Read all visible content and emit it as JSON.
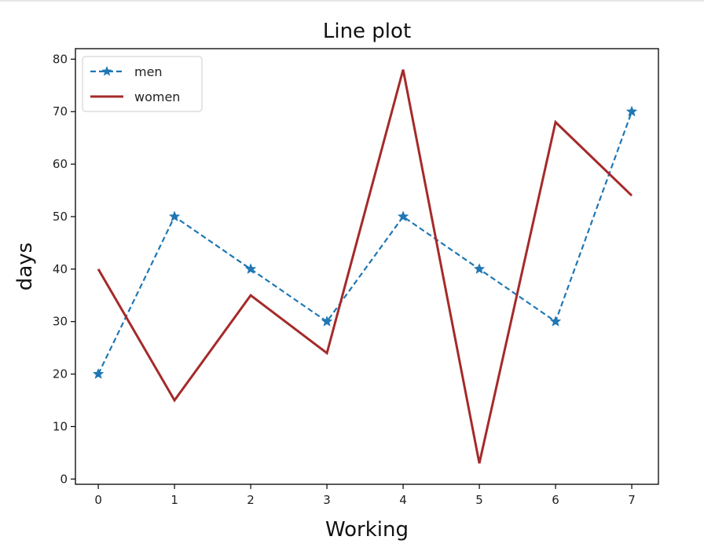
{
  "chart_data": {
    "type": "line",
    "title": "Line plot",
    "xlabel": "Working",
    "ylabel": "days",
    "x": [
      0,
      1,
      2,
      3,
      4,
      5,
      6,
      7
    ],
    "xlim": [
      -0.3,
      7.35
    ],
    "ylim": [
      -1,
      82
    ],
    "xticks": [
      0,
      1,
      2,
      3,
      4,
      5,
      6,
      7
    ],
    "yticks": [
      0,
      10,
      20,
      30,
      40,
      50,
      60,
      70,
      80
    ],
    "grid": false,
    "legend_position": "upper-left",
    "series": [
      {
        "name": "men",
        "values": [
          20,
          50,
          40,
          30,
          50,
          40,
          30,
          70
        ],
        "color": "#1f77b4",
        "linestyle": "dashed",
        "marker": "star"
      },
      {
        "name": "women",
        "values": [
          40,
          15,
          35,
          24,
          78,
          3,
          68,
          54
        ],
        "color": "#a52a2a",
        "linestyle": "solid",
        "marker": "none"
      }
    ]
  }
}
